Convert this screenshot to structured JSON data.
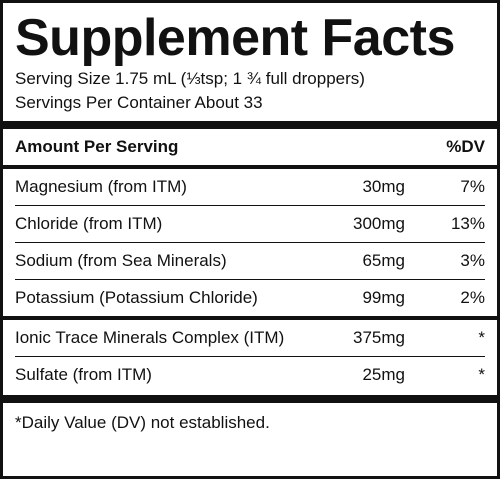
{
  "title": "Supplement Facts",
  "serving_size": "Serving Size 1.75 mL (⅓tsp; 1 ¾ full droppers)",
  "servings_per_container": "Servings Per Container About 33",
  "header": {
    "amount_label": "Amount Per Serving",
    "dv_label": "%DV"
  },
  "group1": [
    {
      "name": "Magnesium (from ITM)",
      "amount": "30mg",
      "dv": "7%"
    },
    {
      "name": "Chloride (from ITM)",
      "amount": "300mg",
      "dv": "13%"
    },
    {
      "name": "Sodium (from Sea Minerals)",
      "amount": "65mg",
      "dv": "3%"
    },
    {
      "name": "Potassium (Potassium Chloride)",
      "amount": "99mg",
      "dv": "2%"
    }
  ],
  "group2": [
    {
      "name": "Ionic Trace Minerals Complex (ITM)",
      "amount": "375mg",
      "dv": "*"
    },
    {
      "name": "Sulfate (from ITM)",
      "amount": "25mg",
      "dv": "*"
    }
  ],
  "footnote": "*Daily Value (DV) not established."
}
